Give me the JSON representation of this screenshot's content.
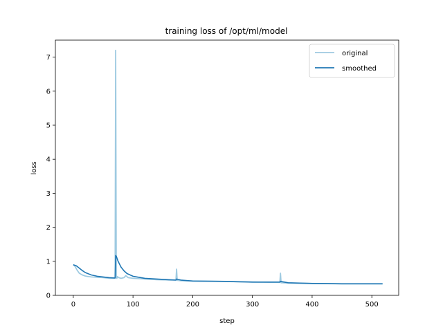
{
  "chart_data": {
    "type": "line",
    "title": "training loss of /opt/ml/model",
    "xlabel": "step",
    "ylabel": "loss",
    "xlim": [
      -30,
      545
    ],
    "ylim": [
      0,
      7.5
    ],
    "xticks": [
      0,
      100,
      200,
      300,
      400,
      500
    ],
    "yticks": [
      0,
      1,
      2,
      3,
      4,
      5,
      6,
      7
    ],
    "grid": false,
    "legend_position": "top-right",
    "series": [
      {
        "name": "original",
        "color": "#9ecae1",
        "x": [
          0,
          3,
          6,
          10,
          15,
          20,
          25,
          30,
          40,
          50,
          60,
          68,
          70,
          71,
          72,
          73,
          74,
          76,
          80,
          85,
          88,
          92,
          100,
          120,
          140,
          160,
          172,
          173,
          174,
          175,
          180,
          200,
          250,
          300,
          346,
          347,
          348,
          350,
          360,
          400,
          450,
          500,
          518
        ],
        "values": [
          0.9,
          0.85,
          0.75,
          0.65,
          0.6,
          0.57,
          0.55,
          0.54,
          0.53,
          0.52,
          0.5,
          0.5,
          0.51,
          7.2,
          0.52,
          0.5,
          0.55,
          0.52,
          0.5,
          0.52,
          0.58,
          0.52,
          0.5,
          0.48,
          0.46,
          0.45,
          0.45,
          0.77,
          0.44,
          0.44,
          0.43,
          0.42,
          0.41,
          0.39,
          0.38,
          0.65,
          0.37,
          0.37,
          0.36,
          0.35,
          0.34,
          0.34,
          0.34
        ]
      },
      {
        "name": "smoothed",
        "color": "#1f77b4",
        "x": [
          0,
          5,
          10,
          15,
          20,
          30,
          40,
          50,
          60,
          70,
          71,
          72,
          75,
          80,
          85,
          90,
          100,
          120,
          140,
          160,
          172,
          173,
          175,
          180,
          200,
          250,
          300,
          346,
          347,
          350,
          360,
          400,
          450,
          500,
          518
        ],
        "values": [
          0.9,
          0.87,
          0.8,
          0.73,
          0.67,
          0.6,
          0.56,
          0.54,
          0.52,
          0.51,
          1.17,
          1.15,
          1.0,
          0.83,
          0.72,
          0.64,
          0.56,
          0.5,
          0.48,
          0.46,
          0.45,
          0.48,
          0.47,
          0.45,
          0.42,
          0.41,
          0.39,
          0.39,
          0.41,
          0.4,
          0.37,
          0.35,
          0.34,
          0.34,
          0.34
        ]
      }
    ]
  }
}
